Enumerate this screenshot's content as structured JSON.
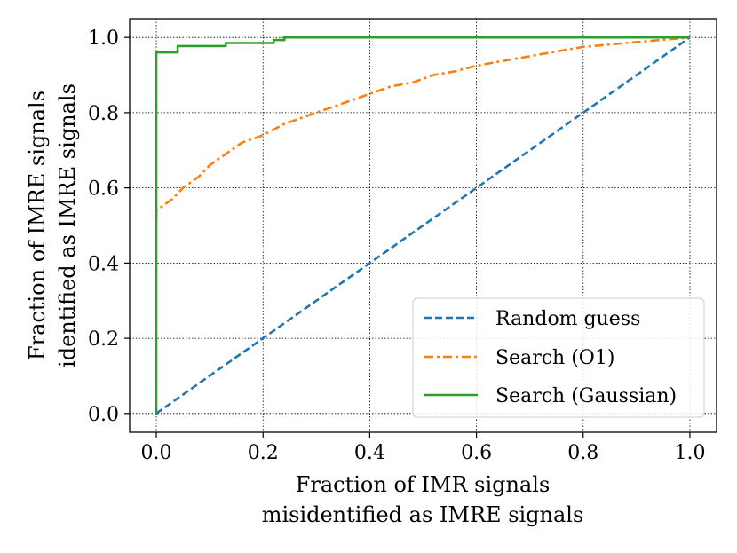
{
  "chart_data": {
    "type": "line",
    "title": "",
    "xlabel": [
      "Fraction of IMR signals",
      "misidentified as IMRE signals"
    ],
    "ylabel": [
      "Fraction of IMRE signals",
      "identified as IMRE signals"
    ],
    "xlim": [
      -0.05,
      1.05
    ],
    "ylim": [
      -0.05,
      1.05
    ],
    "xticks": [
      0.0,
      0.2,
      0.4,
      0.6,
      0.8,
      1.0
    ],
    "yticks": [
      0.0,
      0.2,
      0.4,
      0.6,
      0.8,
      1.0
    ],
    "xtick_labels": [
      "0.0",
      "0.2",
      "0.4",
      "0.6",
      "0.8",
      "1.0"
    ],
    "ytick_labels": [
      "0.0",
      "0.2",
      "0.4",
      "0.6",
      "0.8",
      "1.0"
    ],
    "grid": true,
    "legend_position": "lower-right",
    "series": [
      {
        "name": "Random guess",
        "color": "#1f77b4",
        "style": "dashed",
        "x": [
          0.0,
          1.0
        ],
        "y": [
          0.0,
          1.0
        ]
      },
      {
        "name": "Search (O1)",
        "color": "#ff7f0e",
        "style": "dashdot",
        "x": [
          0.0,
          0.0,
          0.01,
          0.03,
          0.05,
          0.08,
          0.1,
          0.13,
          0.16,
          0.2,
          0.24,
          0.28,
          0.32,
          0.36,
          0.4,
          0.44,
          0.48,
          0.52,
          0.56,
          0.6,
          0.64,
          0.68,
          0.72,
          0.76,
          0.8,
          0.84,
          0.88,
          0.92,
          0.96,
          1.0
        ],
        "y": [
          0.52,
          0.54,
          0.55,
          0.57,
          0.6,
          0.63,
          0.66,
          0.69,
          0.72,
          0.74,
          0.77,
          0.79,
          0.81,
          0.83,
          0.85,
          0.87,
          0.88,
          0.9,
          0.91,
          0.925,
          0.935,
          0.945,
          0.955,
          0.965,
          0.975,
          0.98,
          0.985,
          0.99,
          0.995,
          1.0
        ]
      },
      {
        "name": "Search (Gaussian)",
        "color": "#2ca02c",
        "style": "solid",
        "x": [
          0.0,
          0.0,
          0.04,
          0.04,
          0.13,
          0.13,
          0.22,
          0.22,
          0.24,
          0.24,
          1.0
        ],
        "y": [
          0.0,
          0.96,
          0.96,
          0.977,
          0.977,
          0.985,
          0.985,
          0.993,
          0.993,
          1.0,
          1.0
        ]
      }
    ]
  }
}
